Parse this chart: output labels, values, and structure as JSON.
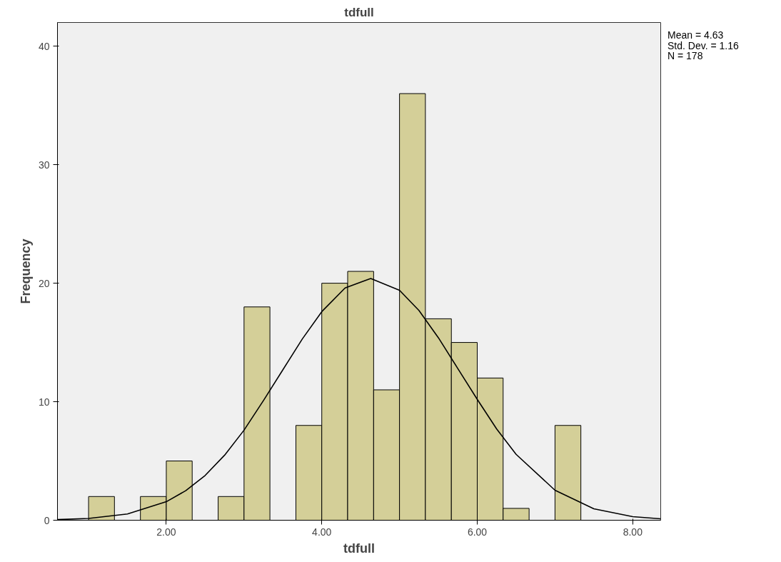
{
  "chart_data": {
    "type": "histogram",
    "title": "tdfull",
    "xlabel": "tdfull",
    "ylabel": "Frequency",
    "series": [
      {
        "type": "histogram",
        "color": "#d4cf98",
        "bins": [
          1.0,
          1.333,
          1.667,
          2.0,
          2.333,
          2.667,
          3.0,
          3.333,
          3.667,
          4.0,
          4.333,
          4.667,
          5.0,
          5.333,
          5.667,
          6.0,
          6.333,
          6.667,
          7.0,
          7.333
        ],
        "values": [
          2,
          0,
          2,
          5,
          0,
          2,
          18,
          0,
          8,
          20,
          21,
          11,
          36,
          17,
          15,
          12,
          1,
          0,
          8
        ]
      },
      {
        "type": "line",
        "color": "#000000",
        "x": [
          0.6,
          1.0,
          1.5,
          2.0,
          2.25,
          2.5,
          2.75,
          3.0,
          3.25,
          3.5,
          3.75,
          4.0,
          4.3,
          4.63,
          5.0,
          5.25,
          5.5,
          5.75,
          6.0,
          6.25,
          6.5,
          7.0,
          7.5,
          8.0,
          8.36
        ],
        "values": [
          0.05,
          0.15,
          0.53,
          1.56,
          2.49,
          3.78,
          5.49,
          7.6,
          10.1,
          12.7,
          15.3,
          17.6,
          19.6,
          20.4,
          19.4,
          17.7,
          15.4,
          12.8,
          10.2,
          7.7,
          5.56,
          2.53,
          0.96,
          0.3,
          0.12
        ]
      }
    ],
    "xlim": [
      0.6,
      8.36
    ],
    "ylim": [
      0,
      42
    ],
    "xticks": [
      {
        "value": 2,
        "label": "2.00"
      },
      {
        "value": 4,
        "label": "4.00"
      },
      {
        "value": 6,
        "label": "6.00"
      },
      {
        "value": 8,
        "label": "8.00"
      }
    ],
    "yticks": [
      0,
      10,
      20,
      30,
      40
    ],
    "grid": false,
    "marker": "none",
    "line_style": "solid",
    "annotations": [
      "Mean = 4.63",
      "Std. Dev. = 1.16",
      "N = 178"
    ]
  }
}
